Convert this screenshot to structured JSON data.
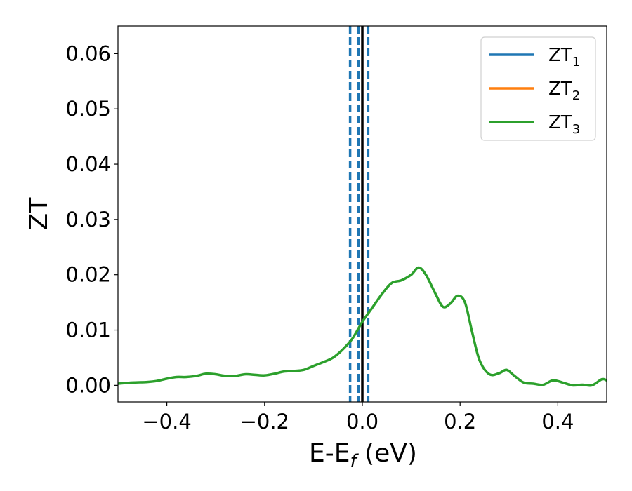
{
  "chart_data": {
    "type": "line",
    "title": "",
    "xlabel": {
      "base": "E-E",
      "sub": "f",
      "unit": " (eV)"
    },
    "ylabel": "ZT",
    "xlim": [
      -0.5,
      0.5
    ],
    "ylim": [
      -0.003,
      0.065
    ],
    "xticks": [
      -0.4,
      -0.2,
      0.0,
      0.2,
      0.4
    ],
    "xtick_labels": [
      "−0.4",
      "−0.2",
      "0.0",
      "0.2",
      "0.4"
    ],
    "yticks": [
      0.0,
      0.01,
      0.02,
      0.03,
      0.04,
      0.05,
      0.06
    ],
    "ytick_labels": [
      "0.00",
      "0.01",
      "0.02",
      "0.03",
      "0.04",
      "0.05",
      "0.06"
    ],
    "grid": false,
    "legend_position": "top-right",
    "series": [
      {
        "name": "ZT",
        "sub": "1",
        "color": "#1f77b4",
        "values": null
      },
      {
        "name": "ZT",
        "sub": "2",
        "color": "#ff7f0e",
        "values": null
      },
      {
        "name": "ZT",
        "sub": "3",
        "color": "#2ca02c",
        "points": [
          [
            -0.5,
            0.0003
          ],
          [
            -0.47,
            0.0005
          ],
          [
            -0.44,
            0.0006
          ],
          [
            -0.42,
            0.0008
          ],
          [
            -0.4,
            0.0012
          ],
          [
            -0.38,
            0.0015
          ],
          [
            -0.36,
            0.0015
          ],
          [
            -0.34,
            0.0017
          ],
          [
            -0.32,
            0.0021
          ],
          [
            -0.3,
            0.002
          ],
          [
            -0.28,
            0.0017
          ],
          [
            -0.26,
            0.0017
          ],
          [
            -0.24,
            0.002
          ],
          [
            -0.22,
            0.0019
          ],
          [
            -0.2,
            0.0018
          ],
          [
            -0.18,
            0.0021
          ],
          [
            -0.16,
            0.0025
          ],
          [
            -0.14,
            0.0026
          ],
          [
            -0.12,
            0.0028
          ],
          [
            -0.1,
            0.0035
          ],
          [
            -0.08,
            0.0042
          ],
          [
            -0.06,
            0.005
          ],
          [
            -0.04,
            0.0065
          ],
          [
            -0.02,
            0.0085
          ],
          [
            0.0,
            0.0115
          ],
          [
            0.02,
            0.014
          ],
          [
            0.04,
            0.0165
          ],
          [
            0.06,
            0.0185
          ],
          [
            0.08,
            0.019
          ],
          [
            0.1,
            0.02
          ],
          [
            0.115,
            0.0213
          ],
          [
            0.13,
            0.02
          ],
          [
            0.15,
            0.0165
          ],
          [
            0.165,
            0.0142
          ],
          [
            0.18,
            0.0148
          ],
          [
            0.195,
            0.0162
          ],
          [
            0.21,
            0.015
          ],
          [
            0.225,
            0.0095
          ],
          [
            0.24,
            0.0045
          ],
          [
            0.26,
            0.002
          ],
          [
            0.28,
            0.0022
          ],
          [
            0.295,
            0.0028
          ],
          [
            0.31,
            0.0018
          ],
          [
            0.33,
            0.0005
          ],
          [
            0.35,
            0.0003
          ],
          [
            0.37,
            0.0001
          ],
          [
            0.39,
            0.0009
          ],
          [
            0.41,
            0.0005
          ],
          [
            0.43,
            0.0
          ],
          [
            0.45,
            0.0001
          ],
          [
            0.47,
            0.0
          ],
          [
            0.49,
            0.0011
          ],
          [
            0.5,
            0.0009
          ]
        ]
      }
    ],
    "vertical_lines": [
      {
        "x": 0.0,
        "style": "solid",
        "color": "#000000"
      },
      {
        "x": -0.025,
        "style": "dashed",
        "color": "#1f77b4"
      },
      {
        "x": -0.008,
        "style": "dashed",
        "color": "#1f77b4"
      },
      {
        "x": 0.012,
        "style": "dashed",
        "color": "#1f77b4"
      }
    ]
  }
}
